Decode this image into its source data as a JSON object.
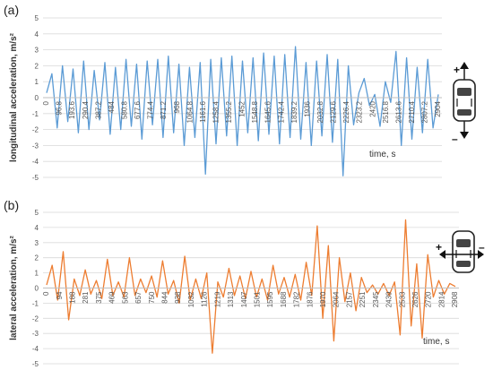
{
  "chart_data": [
    {
      "type": "line",
      "panel_label": "(a)",
      "ylabel": "longitudinal acceleration, m/s²",
      "xlabel": "time, s",
      "ylim": [
        -5,
        5
      ],
      "y_ticks": [
        5,
        4,
        3,
        2,
        1,
        0,
        -1,
        -2,
        -3,
        -4,
        -5
      ],
      "x_ticks": [
        "0",
        "96.8",
        "193.6",
        "290.4",
        "387.2",
        "484",
        "580.8",
        "677.6",
        "774.4",
        "871.2",
        "968",
        "1064.8",
        "1161.6",
        "1258.4",
        "1355.2",
        "1452",
        "1548.8",
        "1645.6",
        "1742.4",
        "1839.2",
        "1936",
        "2032.8",
        "2129.6",
        "2226.4",
        "2323.2",
        "2420",
        "2516.8",
        "2613.6",
        "2710.4",
        "2807.2",
        "2904"
      ],
      "color": "#5b9bd5",
      "icon": "car-top-view-longitudinal-arrows-icon",
      "icon_signs": [
        "+",
        "–"
      ],
      "series": [
        {
          "x": [
            0,
            40,
            80,
            120,
            160,
            200,
            240,
            280,
            320,
            360,
            400,
            440,
            480,
            520,
            560,
            600,
            640,
            680,
            720,
            760,
            800,
            840,
            880,
            920,
            960,
            1000,
            1040,
            1080,
            1120,
            1160,
            1200,
            1240,
            1280,
            1320,
            1360,
            1400,
            1440,
            1480,
            1520,
            1560,
            1600,
            1640,
            1680,
            1720,
            1760,
            1800,
            1840,
            1880,
            1920,
            1960,
            2000,
            2040,
            2080,
            2120,
            2160,
            2200,
            2240,
            2280,
            2320,
            2360,
            2400,
            2440,
            2480,
            2520,
            2560,
            2600,
            2640,
            2680,
            2720,
            2760,
            2800,
            2840,
            2880,
            2920,
            2960
          ],
          "y": [
            0.3,
            1.5,
            -1.9,
            2.0,
            -1.5,
            1.8,
            -2.2,
            2.3,
            -2.0,
            1.7,
            -1.4,
            2.2,
            -2.3,
            1.9,
            -2.0,
            2.4,
            -1.8,
            2.1,
            -2.6,
            2.3,
            -1.7,
            2.4,
            -2.5,
            2.6,
            -2.2,
            2.1,
            -3.0,
            1.9,
            -2.5,
            2.2,
            -4.8,
            2.4,
            -2.9,
            2.5,
            -2.4,
            2.6,
            -3.0,
            2.3,
            -2.2,
            2.5,
            -2.7,
            2.8,
            -2.3,
            2.6,
            -2.9,
            2.7,
            -2.5,
            3.2,
            -2.6,
            2.2,
            -3.0,
            2.3,
            -2.4,
            2.7,
            -2.8,
            2.4,
            -4.9,
            2.0,
            -1.7,
            0.3,
            1.2,
            -0.5,
            0.2,
            -1.8,
            1.0,
            -0.3,
            2.9,
            -3.0,
            2.5,
            -2.6,
            1.9,
            -2.2,
            2.4,
            -1.9,
            0.2
          ]
        }
      ]
    },
    {
      "type": "line",
      "panel_label": "(b)",
      "ylabel": "lateral acceleration, m/s²",
      "xlabel": "time, s",
      "ylim": [
        -5,
        5
      ],
      "y_ticks": [
        5,
        4,
        3,
        2,
        1,
        0,
        -1,
        -2,
        -3,
        -4,
        -5
      ],
      "x_ticks": [
        "0",
        "94",
        "188",
        "281",
        "375",
        "469",
        "563",
        "657",
        "750",
        "844",
        "938",
        "1032",
        "1126",
        "1219",
        "1313",
        "1407",
        "1501",
        "1595",
        "1688",
        "1782",
        "1876",
        "1970",
        "2064",
        "2157",
        "2251",
        "2345",
        "2439",
        "2533",
        "2626",
        "2720",
        "2814",
        "2908"
      ],
      "color": "#ed7d31",
      "icon": "car-top-view-lateral-arrows-icon",
      "icon_signs": [
        "+",
        "–"
      ],
      "series": [
        {
          "x": [
            0,
            40,
            80,
            120,
            160,
            200,
            240,
            280,
            320,
            360,
            400,
            440,
            480,
            520,
            560,
            600,
            640,
            680,
            720,
            760,
            800,
            840,
            880,
            920,
            960,
            1000,
            1040,
            1080,
            1120,
            1160,
            1200,
            1240,
            1280,
            1320,
            1360,
            1400,
            1440,
            1480,
            1520,
            1560,
            1600,
            1640,
            1680,
            1720,
            1760,
            1800,
            1840,
            1880,
            1920,
            1960,
            2000,
            2040,
            2080,
            2120,
            2160,
            2200,
            2240,
            2280,
            2320,
            2360,
            2400,
            2440,
            2480,
            2520,
            2560,
            2600,
            2640,
            2680,
            2720,
            2760,
            2800,
            2840,
            2880,
            2920,
            2960
          ],
          "y": [
            0.2,
            1.5,
            -0.8,
            2.4,
            -2.1,
            0.6,
            -0.5,
            1.2,
            -0.4,
            0.5,
            -0.7,
            1.9,
            -0.5,
            0.4,
            -0.6,
            2.0,
            -0.5,
            0.6,
            -0.3,
            0.8,
            -0.6,
            1.8,
            -0.4,
            0.5,
            -1.0,
            2.1,
            -0.8,
            0.6,
            -0.7,
            1.0,
            -4.3,
            0.4,
            -0.6,
            1.3,
            -0.5,
            0.8,
            -0.7,
            1.1,
            -0.6,
            0.6,
            -0.8,
            1.5,
            -0.4,
            0.7,
            -0.6,
            0.9,
            -0.8,
            1.7,
            -0.5,
            4.1,
            -2.0,
            2.8,
            -3.5,
            2.0,
            -0.9,
            1.0,
            -1.5,
            0.7,
            -0.3,
            0.2,
            -0.4,
            0.3,
            -0.5,
            0.4,
            -3.1,
            4.5,
            -2.5,
            1.6,
            -3.3,
            2.2,
            -0.6,
            0.5,
            -0.4,
            0.3,
            0.1
          ]
        }
      ]
    }
  ]
}
